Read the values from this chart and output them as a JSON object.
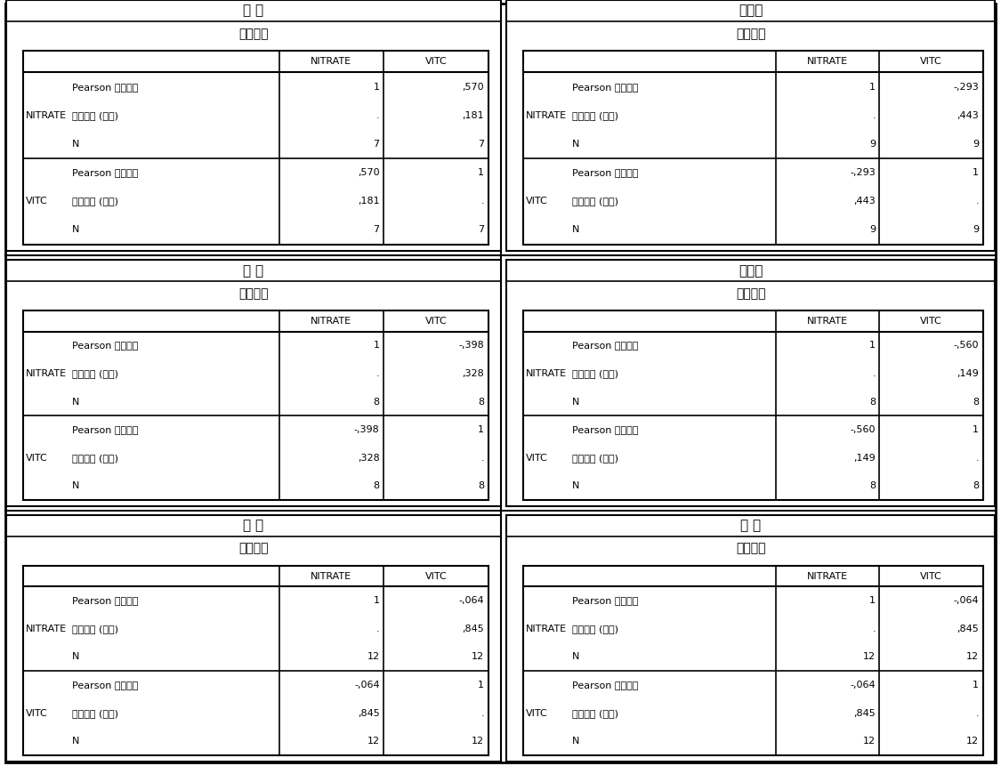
{
  "panels": [
    {
      "title": "배 추",
      "subtitle": "상관계수",
      "rows": [
        {
          "row_label": "NITRATE",
          "sub_rows": [
            {
              "label": "Pearson 상관계수",
              "nitrate": "1",
              "vitc": ",570"
            },
            {
              "label": "유의확률 (양쪽)",
              "nitrate": ".",
              "vitc": ",181"
            },
            {
              "label": "N",
              "nitrate": "7",
              "vitc": "7"
            }
          ]
        },
        {
          "row_label": "VITC",
          "sub_rows": [
            {
              "label": "Pearson 상관계수",
              "nitrate": ",570",
              "vitc": "1"
            },
            {
              "label": "유의확률 (양쪽)",
              "nitrate": ",181",
              "vitc": "."
            },
            {
              "label": "N",
              "nitrate": "7",
              "vitc": "7"
            }
          ]
        }
      ]
    },
    {
      "title": "양배추",
      "subtitle": "상관계수",
      "rows": [
        {
          "row_label": "NITRATE",
          "sub_rows": [
            {
              "label": "Pearson 상관계수",
              "nitrate": "1",
              "vitc": "-,293"
            },
            {
              "label": "유의확률 (양쪽)",
              "nitrate": ".",
              "vitc": ",443"
            },
            {
              "label": "N",
              "nitrate": "9",
              "vitc": "9"
            }
          ]
        },
        {
          "row_label": "VITC",
          "sub_rows": [
            {
              "label": "Pearson 상관계수",
              "nitrate": "-,293",
              "vitc": "1"
            },
            {
              "label": "유의확률 (양쪽)",
              "nitrate": ",443",
              "vitc": "."
            },
            {
              "label": "N",
              "nitrate": "9",
              "vitc": "9"
            }
          ]
        }
      ]
    },
    {
      "title": "상 추",
      "subtitle": "상관계수",
      "rows": [
        {
          "row_label": "NITRATE",
          "sub_rows": [
            {
              "label": "Pearson 상관계수",
              "nitrate": "1",
              "vitc": "-,398"
            },
            {
              "label": "유의확률 (양쪽)",
              "nitrate": ".",
              "vitc": ",328"
            },
            {
              "label": "N",
              "nitrate": "8",
              "vitc": "8"
            }
          ]
        },
        {
          "row_label": "VITC",
          "sub_rows": [
            {
              "label": "Pearson 상관계수",
              "nitrate": "-,398",
              "vitc": "1"
            },
            {
              "label": "유의확률 (양쪽)",
              "nitrate": ",328",
              "vitc": "."
            },
            {
              "label": "N",
              "nitrate": "8",
              "vitc": "8"
            }
          ]
        }
      ]
    },
    {
      "title": "시금치",
      "subtitle": "상관계수",
      "rows": [
        {
          "row_label": "NITRATE",
          "sub_rows": [
            {
              "label": "Pearson 상관계수",
              "nitrate": "1",
              "vitc": "-,560"
            },
            {
              "label": "유의확률 (양쪽)",
              "nitrate": ".",
              "vitc": ",149"
            },
            {
              "label": "N",
              "nitrate": "8",
              "vitc": "8"
            }
          ]
        },
        {
          "row_label": "VITC",
          "sub_rows": [
            {
              "label": "Pearson 상관계수",
              "nitrate": "-,560",
              "vitc": "1"
            },
            {
              "label": "유의확률 (양쪽)",
              "nitrate": ",149",
              "vitc": "."
            },
            {
              "label": "N",
              "nitrate": "8",
              "vitc": "8"
            }
          ]
        }
      ]
    },
    {
      "title": "숙 갇",
      "subtitle": "상관계수",
      "rows": [
        {
          "row_label": "NITRATE",
          "sub_rows": [
            {
              "label": "Pearson 상관계수",
              "nitrate": "1",
              "vitc": "-,064"
            },
            {
              "label": "유의확률 (양쪽)",
              "nitrate": ".",
              "vitc": ",845"
            },
            {
              "label": "N",
              "nitrate": "12",
              "vitc": "12"
            }
          ]
        },
        {
          "row_label": "VITC",
          "sub_rows": [
            {
              "label": "Pearson 상관계수",
              "nitrate": "-,064",
              "vitc": "1"
            },
            {
              "label": "유의확률 (양쪽)",
              "nitrate": ",845",
              "vitc": "."
            },
            {
              "label": "N",
              "nitrate": "12",
              "vitc": "12"
            }
          ]
        }
      ]
    },
    {
      "title": "근 대",
      "subtitle": "상관계수",
      "rows": [
        {
          "row_label": "NITRATE",
          "sub_rows": [
            {
              "label": "Pearson 상관계수",
              "nitrate": "1",
              "vitc": "-,064"
            },
            {
              "label": "유의확률 (양쪽)",
              "nitrate": ".",
              "vitc": ",845"
            },
            {
              "label": "N",
              "nitrate": "12",
              "vitc": "12"
            }
          ]
        },
        {
          "row_label": "VITC",
          "sub_rows": [
            {
              "label": "Pearson 상관계수",
              "nitrate": "-,064",
              "vitc": "1"
            },
            {
              "label": "유의확률 (양쪽)",
              "nitrate": ",845",
              "vitc": "."
            },
            {
              "label": "N",
              "nitrate": "12",
              "vitc": "12"
            }
          ]
        }
      ]
    }
  ],
  "bg_color": "#ffffff",
  "border_color": "#000000",
  "text_color": "#000000",
  "title_fontsize": 11,
  "subtitle_fontsize": 10,
  "header_fontsize": 8,
  "cell_fontsize": 8
}
